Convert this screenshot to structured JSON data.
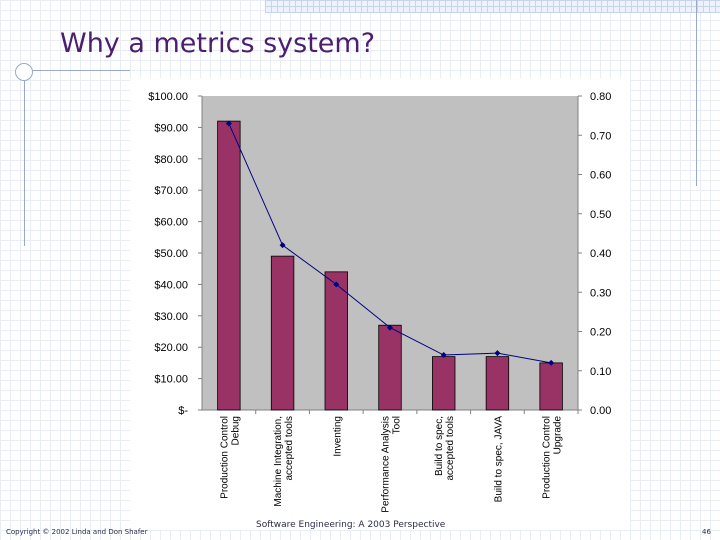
{
  "slide": {
    "title": "Why a metrics system?",
    "footer_left": "Copyright © 2002 Linda and Don Shafer",
    "footer_center": "Software Engineering: A 2003 Perspective",
    "page_number": "46"
  },
  "chart_data": {
    "type": "bar",
    "categories": [
      [
        "Production Control",
        "Debug"
      ],
      [
        "Machine Integration,",
        "accepted tools"
      ],
      [
        "Inventing"
      ],
      [
        "Performance Analysis",
        "Tool"
      ],
      [
        "Build to spec,",
        "accepted tools"
      ],
      [
        "Build to spec, JAVA"
      ],
      [
        "Production Control",
        "Upgrade"
      ]
    ],
    "values": [
      92,
      49,
      44,
      27,
      17,
      17,
      15
    ],
    "line_values": [
      0.73,
      0.42,
      0.32,
      0.21,
      0.14,
      0.145,
      0.12
    ],
    "y_ticks": [
      "$100.00",
      "$90.00",
      "$80.00",
      "$70.00",
      "$60.00",
      "$50.00",
      "$40.00",
      "$30.00",
      "$20.00",
      "$10.00",
      "$-"
    ],
    "y2_ticks": [
      "0.80",
      "0.70",
      "0.60",
      "0.50",
      "0.40",
      "0.30",
      "0.20",
      "0.10",
      "0.00"
    ],
    "ylim": [
      0,
      100
    ],
    "y2lim": [
      0,
      0.8
    ],
    "colors": {
      "bar": "#993366",
      "line": "#000080",
      "plot_bg": "#c0c0c0"
    }
  }
}
